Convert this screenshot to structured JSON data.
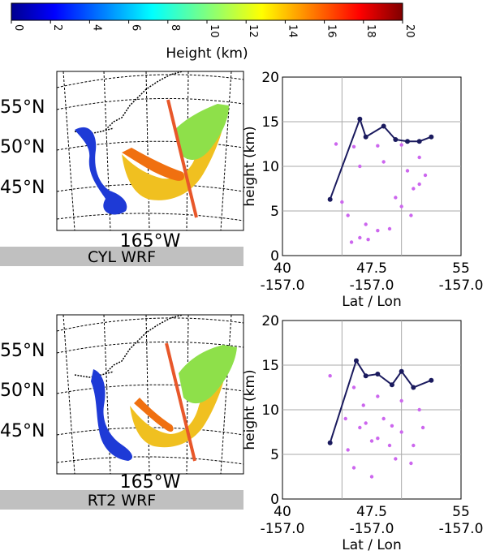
{
  "colorbar": {
    "label": "Height (km)",
    "min": 0,
    "max": 20,
    "ticks": [
      "0",
      "2",
      "4",
      "6",
      "8",
      "10",
      "12",
      "14",
      "16",
      "18",
      "20"
    ],
    "colormap": "jet"
  },
  "panels": [
    {
      "label": "CYL WRF",
      "map": {
        "lat_labels": [
          "55°N",
          "50°N",
          "45°N"
        ],
        "lon_label": "165°W",
        "transect_color": "#e8572a"
      },
      "scatter": {
        "ylabel": "height (km)",
        "xlabel": "Lat / Lon",
        "yticks": [
          "0",
          "5",
          "10",
          "15",
          "20"
        ],
        "xticks": [
          {
            "lat": "40",
            "lon": "-157.0"
          },
          {
            "lat": "47.5",
            "lon": "-157.0"
          },
          {
            "lat": "55",
            "lon": "-157.0"
          }
        ]
      }
    },
    {
      "label": "RT2 WRF",
      "map": {
        "lat_labels": [
          "55°N",
          "50°N",
          "45°N"
        ],
        "lon_label": "165°W",
        "transect_color": "#e8572a"
      },
      "scatter": {
        "ylabel": "height (km)",
        "xlabel": "Lat / Lon",
        "yticks": [
          "0",
          "5",
          "10",
          "15",
          "20"
        ],
        "xticks": [
          {
            "lat": "40",
            "lon": "-157.0"
          },
          {
            "lat": "47.5",
            "lon": "-157.0"
          },
          {
            "lat": "55",
            "lon": "-157.0"
          }
        ]
      }
    }
  ],
  "chart_data": [
    {
      "type": "scatter",
      "title": "",
      "xlabel": "Lat / Lon",
      "ylabel": "height (km)",
      "xlim": [
        40,
        55
      ],
      "ylim": [
        0,
        20
      ],
      "grid": true,
      "series": [
        {
          "color": "#cc66ee",
          "x": [
            44.5,
            46,
            48,
            50,
            51.5,
            52,
            51,
            49.5,
            47,
            45.5,
            45,
            46.5,
            48.5,
            50.5,
            51.5,
            50,
            48,
            46.5,
            45.8,
            47.2,
            49,
            50.8
          ],
          "y": [
            12.5,
            12.2,
            12.3,
            12.4,
            11,
            9,
            7.5,
            6.5,
            3.5,
            4.5,
            6,
            10,
            10.5,
            9.5,
            8,
            5.5,
            2.8,
            2,
            1.5,
            1.8,
            3,
            4.5
          ]
        },
        {
          "color": "#1a1a5e",
          "x": [
            44,
            46.5,
            47,
            48.5,
            49.5,
            50.5,
            51.5,
            52.5
          ],
          "y": [
            6.3,
            15.3,
            13.3,
            14.5,
            13,
            12.8,
            12.8,
            13.3
          ]
        }
      ]
    },
    {
      "type": "scatter",
      "title": "",
      "xlabel": "Lat / Lon",
      "ylabel": "height (km)",
      "xlim": [
        40,
        55
      ],
      "ylim": [
        0,
        20
      ],
      "grid": true,
      "series": [
        {
          "color": "#cc66ee",
          "x": [
            44,
            46,
            48,
            50,
            51.5,
            51.8,
            51,
            49.5,
            47.5,
            46,
            45.5,
            47,
            48.5,
            50,
            49,
            47.5,
            46.5,
            48,
            49.2,
            46.8,
            45.3,
            50.8
          ],
          "y": [
            13.8,
            12.5,
            11.5,
            11,
            10,
            8,
            6,
            4.5,
            2.5,
            3.5,
            5.5,
            8.5,
            9,
            7.5,
            6,
            6.5,
            8,
            6.8,
            8.2,
            10.5,
            9,
            4
          ]
        },
        {
          "color": "#1a1a5e",
          "x": [
            44,
            46.2,
            47,
            48,
            49.2,
            50,
            51,
            52.5
          ],
          "y": [
            6.3,
            15.5,
            13.8,
            14,
            12.8,
            14.3,
            12.5,
            13.3
          ]
        }
      ]
    }
  ]
}
